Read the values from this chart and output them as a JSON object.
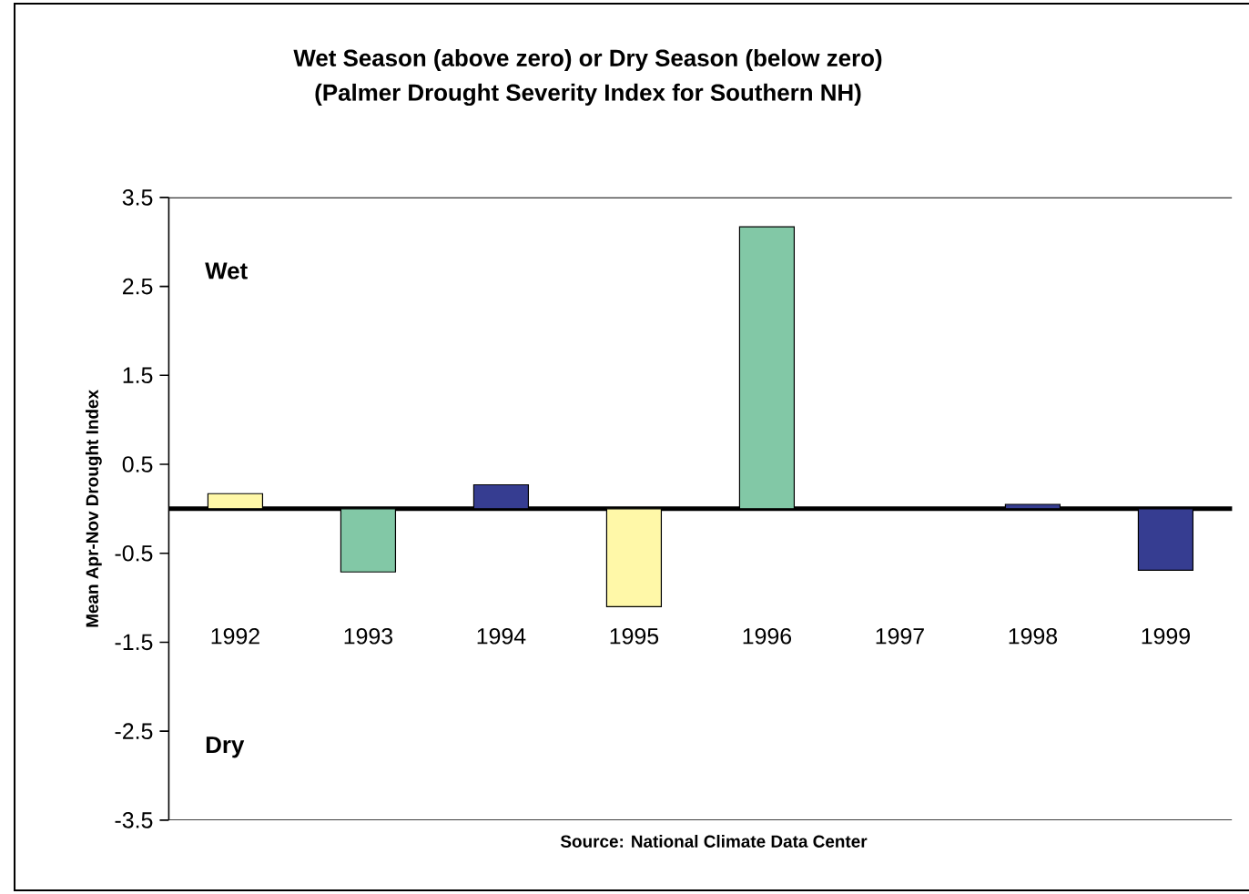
{
  "chart_data": {
    "type": "bar",
    "title": "Wet Season (above zero) or Dry Season (below zero)",
    "subtitle": "(Palmer Drought Severity Index for Southern NH)",
    "ylabel": "Mean Apr-Nov Drought Index",
    "categories": [
      "1992",
      "1993",
      "1994",
      "1995",
      "1996",
      "1997",
      "1998",
      "1999"
    ],
    "values": [
      0.17,
      -0.71,
      0.27,
      -1.1,
      3.17,
      0,
      0.05,
      -0.69
    ],
    "colors": [
      "#fff8a8",
      "#82c8a6",
      "#363d91",
      "#fff8a8",
      "#82c8a6",
      "#363d91",
      "#363d91",
      "#363d91"
    ],
    "ylim": [
      -3.5,
      3.5
    ],
    "yticks": [
      3.5,
      2.5,
      1.5,
      0.5,
      -0.5,
      -1.5,
      -2.5,
      -3.5
    ],
    "annotations": [
      "Wet",
      "Dry",
      "Source: National Climate Data Center"
    ]
  }
}
